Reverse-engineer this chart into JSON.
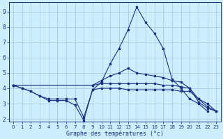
{
  "xlabel": "Graphe des températures (°c)",
  "bg_color": "#cceeff",
  "grid_color": "#aaccdd",
  "line_color": "#1a3080",
  "xlim_min": -0.5,
  "xlim_max": 23.5,
  "ylim_min": 1.8,
  "ylim_max": 9.6,
  "yticks": [
    2,
    3,
    4,
    5,
    6,
    7,
    8,
    9
  ],
  "xticks": [
    0,
    1,
    2,
    3,
    4,
    5,
    6,
    7,
    8,
    9,
    10,
    11,
    12,
    13,
    14,
    15,
    16,
    17,
    18,
    19,
    20,
    21,
    22,
    23
  ],
  "spike_x": [
    0,
    1,
    2,
    3,
    4,
    5,
    6,
    7,
    8,
    9,
    10,
    11,
    12,
    13,
    14,
    15,
    16,
    17,
    18,
    19,
    20,
    21,
    22,
    23
  ],
  "spike_y": [
    4.2,
    4.0,
    3.8,
    3.5,
    3.3,
    3.3,
    3.3,
    3.3,
    2.1,
    3.9,
    4.4,
    5.6,
    6.6,
    7.8,
    9.3,
    8.3,
    7.6,
    6.6,
    4.6,
    4.0,
    3.3,
    3.0,
    2.5,
    null
  ],
  "line_dip_x": [
    0,
    1,
    2,
    3,
    4,
    5,
    6,
    7,
    8,
    9,
    10,
    11,
    12,
    13,
    14,
    15,
    16,
    17,
    18,
    19,
    20,
    21,
    22,
    23
  ],
  "line_dip_y": [
    4.2,
    4.0,
    3.8,
    3.5,
    3.2,
    3.2,
    3.2,
    2.9,
    1.9,
    3.9,
    4.0,
    4.0,
    4.0,
    3.9,
    3.9,
    3.9,
    3.9,
    3.9,
    3.9,
    3.8,
    3.8,
    3.3,
    2.8,
    2.5
  ],
  "line_upper_x": [
    0,
    9,
    10,
    11,
    12,
    13,
    14,
    15,
    16,
    17,
    18,
    19,
    20,
    21,
    22,
    23
  ],
  "line_upper_y": [
    4.2,
    4.2,
    4.5,
    4.8,
    5.0,
    5.3,
    5.0,
    4.9,
    4.8,
    4.7,
    4.5,
    4.4,
    4.0,
    3.3,
    3.0,
    2.5
  ],
  "line_flat_x": [
    0,
    9,
    10,
    11,
    12,
    13,
    14,
    15,
    16,
    17,
    18,
    19,
    20,
    21,
    22,
    23
  ],
  "line_flat_y": [
    4.2,
    4.2,
    4.3,
    4.3,
    4.3,
    4.3,
    4.3,
    4.3,
    4.3,
    4.2,
    4.2,
    4.1,
    4.0,
    3.1,
    2.7,
    2.5
  ]
}
